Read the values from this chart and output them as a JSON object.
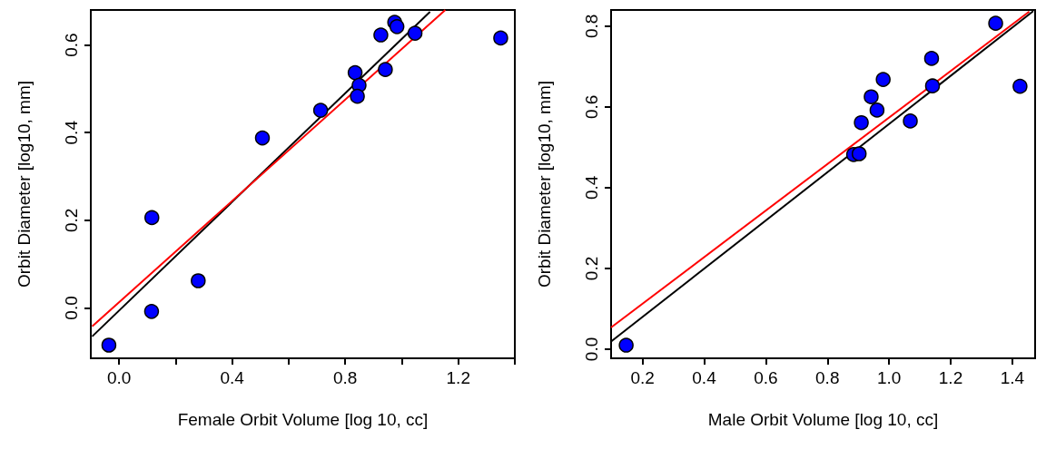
{
  "chart_data": [
    {
      "type": "scatter",
      "xlabel": "Female Orbit Volume [log 10, cc]",
      "ylabel": "Orbit Diameter [log10, mm]",
      "xlim": [
        -0.1,
        1.4
      ],
      "ylim": [
        -0.115,
        0.68
      ],
      "xticks": [
        {
          "value": 0,
          "label": "0.0"
        },
        {
          "value": 0.2,
          "label": null
        },
        {
          "value": 0.4,
          "label": "0.4"
        },
        {
          "value": 0.6,
          "label": null
        },
        {
          "value": 0.8,
          "label": "0.8"
        },
        {
          "value": 1.0,
          "label": null
        },
        {
          "value": 1.2,
          "label": "1.2"
        },
        {
          "value": 1.4,
          "label": null
        }
      ],
      "yticks": [
        {
          "value": 0,
          "label": "0.0"
        },
        0.2,
        0.4,
        0.6
      ],
      "grid": false,
      "series": [
        {
          "color": "#0000ff",
          "marker": "circle",
          "x": [
            -0.036,
            0.115,
            0.116,
            0.28,
            0.507,
            0.713,
            0.835,
            0.849,
            0.843,
            0.942,
            0.926,
            0.975,
            0.983,
            1.047,
            1.35
          ],
          "values": [
            -0.085,
            -0.008,
            0.206,
            0.062,
            0.388,
            0.451,
            0.537,
            0.508,
            0.483,
            0.544,
            0.623,
            0.652,
            0.642,
            0.627,
            0.616
          ]
        },
        {
          "type": "line",
          "color": "#000000",
          "marker": "none",
          "x": [
            -0.095,
            1.1
          ],
          "values": [
            -0.065,
            0.676
          ]
        },
        {
          "type": "line",
          "color": "#ff0000",
          "marker": "none",
          "x": [
            -0.095,
            1.154
          ],
          "values": [
            -0.042,
            0.68
          ]
        }
      ]
    },
    {
      "type": "scatter",
      "xlabel": "Male Orbit Volume [log 10, cc]",
      "ylabel": "Orbit Diameter [log10, mm]",
      "xlim": [
        0.098,
        1.474
      ],
      "ylim": [
        -0.0225,
        0.84
      ],
      "xticks": [
        0.2,
        0.4,
        0.6,
        0.8,
        {
          "value": 1.0,
          "label": "1.0"
        },
        1.2,
        1.4
      ],
      "yticks": [
        {
          "value": 0,
          "label": "0.0"
        },
        0.2,
        0.4,
        0.6,
        0.8
      ],
      "grid": false,
      "series": [
        {
          "color": "#0000ff",
          "marker": "circle",
          "x": [
            0.147,
            0.885,
            0.903,
            0.91,
            0.942,
            0.961,
            0.981,
            1.069,
            1.138,
            1.141,
            1.346,
            1.425
          ],
          "values": [
            0.01,
            0.482,
            0.484,
            0.561,
            0.625,
            0.592,
            0.668,
            0.565,
            0.72,
            0.652,
            0.807,
            0.651
          ]
        },
        {
          "type": "line",
          "color": "#000000",
          "marker": "none",
          "x": [
            0.098,
            1.468
          ],
          "values": [
            0.019,
            0.837
          ]
        },
        {
          "type": "line",
          "color": "#ff0000",
          "marker": "none",
          "x": [
            0.098,
            1.455
          ],
          "values": [
            0.054,
            0.836
          ]
        }
      ]
    }
  ]
}
